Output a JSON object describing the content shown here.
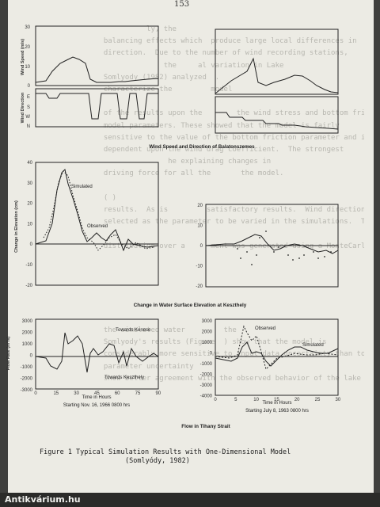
{
  "page_number": "153",
  "bleed_text": [
    "            ly, the          ",
    "  balancing effects which  produce large local differences in",
    "  direction.  Due to the number of wind recording stations,",
    "                the     al variation in Lake",
    "  Somlyody (1982) analyzed  .     ",
    "  characterize the         model    ",
    "                         ",
    "  of the results upon the        the wind stress and bottom friction",
    "  model parameters. These showed that the model is fairly",
    "  sensitive to the value of the bottom friction parameter and is mostly",
    "  dependent upon the wind drag coefficient.  The strongest",
    "                 he explaining changes in",
    "  driving force for all the       the model.",
    "",
    "  ( )             ",
    "  results.  As is         satisfactory results.  Wind direction was",
    "  selected as the parameter to be varied in the simulations.  The",
    "                              ",
    "  distribution over a      ment was generated using a MonteCarlo",
    "",
    "",
    "",
    "",
    "                          ",
    "                          ",
    "  the simulated water         the",
    "  Somlyody's results (Figure  ) show that the model is",
    "  considerably more sensitive to input data uncertainty than to",
    "  parameter uncertainty                               ",
    "  show better agreement with the observed behavior of the lake than do"
  ],
  "fig1": {
    "caption": "Wind Speed and Direction of Balatonszemes",
    "speed_label": "Wind Speed (m/s)",
    "dir_label": "Wind Direction",
    "speed_ticks": [
      "30",
      "20",
      "10",
      "0"
    ],
    "dir_ticks": [
      "E",
      "S",
      "W",
      "N"
    ]
  },
  "fig2": {
    "caption": "Change in Water Surface Elevation at Keszthely",
    "ylabel": "Change in Elevation (cm)",
    "ticks": [
      "40",
      "30",
      "20",
      "10",
      "0",
      "-10",
      "-20"
    ],
    "ticks_right": [
      "20",
      "10",
      "0",
      "-10",
      "-20"
    ],
    "simulated_label": "Simulated",
    "observed_label": "Observed"
  },
  "fig3": {
    "caption": "Flow in Tihany Strait",
    "ylabel": "Flow Rate (m³/s)",
    "left_ticks": [
      "3000",
      "2000",
      "1000",
      "0",
      "-1000",
      "-2000",
      "-3000"
    ],
    "left_xticks": [
      "0",
      "15",
      "30",
      "45",
      "60",
      "75",
      "90"
    ],
    "right_ticks": [
      "3000",
      "2000",
      "1000",
      "0",
      "-1000",
      "-2000",
      "-3000",
      "-4000"
    ],
    "right_xticks": [
      "0",
      "5",
      "10",
      "15",
      "20",
      "25",
      "30"
    ],
    "towards_kenese": "Towards Kenese",
    "towards_keszthely": "Towards Keszthely",
    "observed_label": "Observed",
    "simulated_label": "Simulated",
    "xlabel_left": "Time in Hours",
    "start_left": "Starting Nov. 16, 1966 0800 hrs",
    "xlabel_right": "Time in Hours",
    "start_right": "Starting July 8, 1963 0800 hrs"
  },
  "figure_caption_line1": "Figure 1   Typical Simulation Results with One-Dimensional Model",
  "figure_caption_line2": "(Somlyódy, 1982)",
  "footer_watermark": "Antikvárium.hu"
}
